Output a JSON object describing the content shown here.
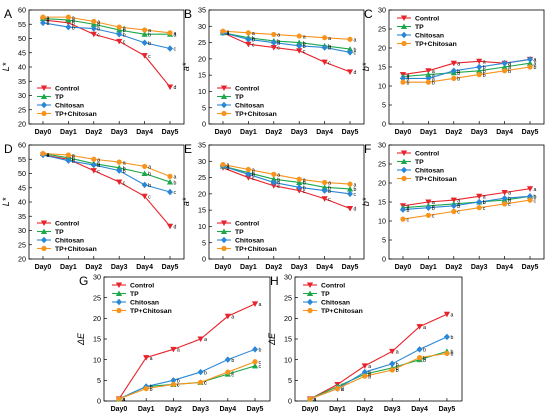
{
  "x_categories": [
    "Day0",
    "Day1",
    "Day2",
    "Day3",
    "Day4",
    "Day5"
  ],
  "colors": {
    "Control": "#e8232b",
    "TP": "#1ca84a",
    "Chitosan": "#2a87d6",
    "TP+Chitosan": "#f7941d"
  },
  "chart_data": [
    {
      "id": "A",
      "panel_letter": "A",
      "type": "line",
      "ylabel": "L*",
      "ylim": [
        20,
        60
      ],
      "yticks": [
        20,
        25,
        30,
        35,
        40,
        45,
        50,
        55,
        60
      ],
      "legend_position": "bottom-left",
      "grid": false,
      "categories": [
        "Day0",
        "Day1",
        "Day2",
        "Day3",
        "Day4",
        "Day5"
      ],
      "series": [
        {
          "name": "Control",
          "values": [
            56.5,
            55.5,
            51.5,
            49,
            44,
            33
          ],
          "labels": [
            "a",
            "b",
            "c",
            "c",
            "c",
            "d"
          ]
        },
        {
          "name": "TP",
          "values": [
            57,
            56.5,
            55,
            53,
            51.5,
            51.5
          ],
          "labels": [
            "a",
            "a",
            "b",
            "b",
            "b",
            "a"
          ]
        },
        {
          "name": "Chitosan",
          "values": [
            55.5,
            54,
            53.5,
            51.5,
            48.5,
            46.5
          ],
          "labels": [
            "b",
            "b",
            "b",
            "b",
            "b",
            "c"
          ]
        },
        {
          "name": "TP+Chitosan",
          "values": [
            57.5,
            57.5,
            56,
            54,
            53,
            52
          ],
          "labels": [
            "a",
            "a",
            "a",
            "a",
            "a",
            "a"
          ]
        }
      ]
    },
    {
      "id": "B",
      "panel_letter": "B",
      "type": "line",
      "ylabel": "a*",
      "ylim": [
        0,
        35
      ],
      "yticks": [
        0,
        5,
        10,
        15,
        20,
        25,
        30,
        35
      ],
      "legend_position": "bottom-left",
      "grid": false,
      "categories": [
        "Day0",
        "Day1",
        "Day2",
        "Day3",
        "Day4",
        "Day5"
      ],
      "series": [
        {
          "name": "Control",
          "values": [
            28,
            24.5,
            23.5,
            22.5,
            19,
            16
          ],
          "labels": [
            "a",
            "c",
            "c",
            "c",
            "c",
            "d"
          ]
        },
        {
          "name": "TP",
          "values": [
            28,
            26.5,
            25.5,
            25,
            24,
            23
          ],
          "labels": [
            "a",
            "b",
            "b",
            "b",
            "b",
            "b"
          ]
        },
        {
          "name": "Chitosan",
          "values": [
            28,
            26,
            25,
            24,
            23.5,
            22
          ],
          "labels": [
            "a",
            "b",
            "b",
            "b",
            "b",
            "c"
          ]
        },
        {
          "name": "TP+Chitosan",
          "values": [
            28.5,
            28,
            27.5,
            27,
            26.5,
            26
          ],
          "labels": [
            "a",
            "a",
            "a",
            "a",
            "a",
            "a"
          ]
        }
      ]
    },
    {
      "id": "C",
      "panel_letter": "C",
      "type": "line",
      "ylabel": "b*",
      "ylim": [
        0,
        30
      ],
      "yticks": [
        0,
        5,
        10,
        15,
        20,
        25,
        30
      ],
      "legend_position": "top-left",
      "grid": false,
      "categories": [
        "Day0",
        "Day1",
        "Day2",
        "Day3",
        "Day4",
        "Day5"
      ],
      "series": [
        {
          "name": "Control",
          "values": [
            13,
            14,
            16,
            16.5,
            16,
            17
          ],
          "labels": [
            "a",
            "a",
            "a",
            "a",
            "a",
            "a"
          ]
        },
        {
          "name": "TP",
          "values": [
            12.5,
            13,
            13.5,
            14,
            15,
            16
          ],
          "labels": [
            "a",
            "a",
            "b",
            "b",
            "a",
            "a"
          ]
        },
        {
          "name": "Chitosan",
          "values": [
            12,
            12,
            14,
            15,
            16,
            17
          ],
          "labels": [
            "a",
            "a",
            "b",
            "b",
            "a",
            "a"
          ]
        },
        {
          "name": "TP+Chitosan",
          "values": [
            11,
            11,
            12,
            13,
            14,
            15
          ],
          "labels": [
            "b",
            "b",
            "b",
            "b",
            "b",
            "b"
          ]
        }
      ]
    },
    {
      "id": "D",
      "panel_letter": "D",
      "type": "line",
      "ylabel": "L*",
      "ylim": [
        20,
        60
      ],
      "yticks": [
        20,
        25,
        30,
        35,
        40,
        45,
        50,
        55,
        60
      ],
      "legend_position": "bottom-left",
      "grid": false,
      "categories": [
        "Day0",
        "Day1",
        "Day2",
        "Day3",
        "Day4",
        "Day5"
      ],
      "series": [
        {
          "name": "Control",
          "values": [
            56.5,
            55,
            51,
            47,
            42,
            31.5
          ],
          "labels": [
            "a",
            "b",
            "c",
            "c",
            "c",
            "d"
          ]
        },
        {
          "name": "TP",
          "values": [
            57,
            55.5,
            53.5,
            52,
            50,
            47
          ],
          "labels": [
            "a",
            "b",
            "b",
            "b",
            "b",
            "b"
          ]
        },
        {
          "name": "Chitosan",
          "values": [
            56.5,
            54.5,
            53,
            51,
            46,
            43.5
          ],
          "labels": [
            "a",
            "b",
            "b",
            "b",
            "b",
            "c"
          ]
        },
        {
          "name": "TP+Chitosan",
          "values": [
            57,
            56.5,
            55,
            54,
            52.5,
            49
          ],
          "labels": [
            "a",
            "a",
            "a",
            "a",
            "a",
            "a"
          ]
        }
      ]
    },
    {
      "id": "E",
      "panel_letter": "E",
      "type": "line",
      "ylabel": "a*",
      "ylim": [
        0,
        35
      ],
      "yticks": [
        0,
        5,
        10,
        15,
        20,
        25,
        30,
        35
      ],
      "legend_position": "bottom-left",
      "grid": false,
      "categories": [
        "Day0",
        "Day1",
        "Day2",
        "Day3",
        "Day4",
        "Day5"
      ],
      "series": [
        {
          "name": "Control",
          "values": [
            28,
            25,
            22.5,
            21,
            18.5,
            15.5
          ],
          "labels": [
            "a",
            "c",
            "c",
            "c",
            "c",
            "d"
          ]
        },
        {
          "name": "TP",
          "values": [
            28.5,
            26.5,
            24.5,
            23.5,
            22,
            21.5
          ],
          "labels": [
            "a",
            "b",
            "b",
            "b",
            "b",
            "b"
          ]
        },
        {
          "name": "Chitosan",
          "values": [
            28.5,
            26,
            23.5,
            22,
            21,
            20
          ],
          "labels": [
            "a",
            "b",
            "b",
            "b",
            "b",
            "c"
          ]
        },
        {
          "name": "TP+Chitosan",
          "values": [
            29,
            27.5,
            26,
            24.5,
            23.5,
            23
          ],
          "labels": [
            "a",
            "a",
            "a",
            "a",
            "a",
            "a"
          ]
        }
      ]
    },
    {
      "id": "F",
      "panel_letter": "F",
      "type": "line",
      "ylabel": "b*",
      "ylim": [
        0,
        30
      ],
      "yticks": [
        0,
        5,
        10,
        15,
        20,
        25,
        30
      ],
      "legend_position": "top-left",
      "grid": false,
      "categories": [
        "Day0",
        "Day1",
        "Day2",
        "Day3",
        "Day4",
        "Day5"
      ],
      "series": [
        {
          "name": "Control",
          "values": [
            14,
            15,
            15.5,
            16.5,
            17.5,
            18.5
          ],
          "labels": [
            "a",
            "a",
            "a",
            "a",
            "a",
            "a"
          ]
        },
        {
          "name": "TP",
          "values": [
            13.5,
            14,
            14.5,
            15,
            15.5,
            16.5
          ],
          "labels": [
            "a",
            "a",
            "a",
            "b",
            "b",
            "b"
          ]
        },
        {
          "name": "Chitosan",
          "values": [
            13,
            13.5,
            14,
            15,
            16,
            16.5
          ],
          "labels": [
            "b",
            "b",
            "b",
            "b",
            "b",
            "b"
          ]
        },
        {
          "name": "TP+Chitosan",
          "values": [
            10.5,
            11.5,
            12.5,
            13.5,
            14.5,
            15.5
          ],
          "labels": [
            "c",
            "c",
            "c",
            "c",
            "c",
            "c"
          ]
        }
      ]
    },
    {
      "id": "G",
      "panel_letter": "G",
      "type": "line",
      "ylabel": "ΔE",
      "ylim": [
        0,
        30
      ],
      "yticks": [
        0,
        5,
        10,
        15,
        20,
        25,
        30
      ],
      "legend_position": "top-left",
      "grid": false,
      "categories": [
        "Day0",
        "Day1",
        "Day2",
        "Day3",
        "Day4",
        "Day5"
      ],
      "series": [
        {
          "name": "Control",
          "values": [
            0.5,
            10.5,
            12.5,
            15,
            20.5,
            23.5
          ],
          "labels": [
            "a",
            "a",
            "a",
            "a",
            "a",
            "a"
          ]
        },
        {
          "name": "TP",
          "values": [
            0.5,
            3.5,
            4,
            4.5,
            6.5,
            8.5
          ],
          "labels": [
            "a",
            "b",
            "c",
            "c",
            "c",
            "c"
          ]
        },
        {
          "name": "Chitosan",
          "values": [
            0.5,
            3.5,
            5,
            7,
            10,
            12.5
          ],
          "labels": [
            "a",
            "b",
            "b",
            "b",
            "b",
            "b"
          ]
        },
        {
          "name": "TP+Chitosan",
          "values": [
            0.5,
            3,
            4,
            4.5,
            7,
            9.5
          ],
          "labels": [
            "a",
            "b",
            "c",
            "c",
            "c",
            "c"
          ]
        }
      ]
    },
    {
      "id": "H",
      "panel_letter": "H",
      "type": "line",
      "ylabel": "ΔE",
      "ylim": [
        0,
        30
      ],
      "yticks": [
        0,
        5,
        10,
        15,
        20,
        25,
        30
      ],
      "legend_position": "top-left",
      "grid": false,
      "categories": [
        "Day0",
        "Day1",
        "Day2",
        "Day3",
        "Day4",
        "Day5"
      ],
      "series": [
        {
          "name": "Control",
          "values": [
            0.5,
            4,
            8.5,
            12,
            18,
            21
          ],
          "labels": [
            "a",
            "a",
            "a",
            "a",
            "a",
            "a"
          ]
        },
        {
          "name": "TP",
          "values": [
            0.5,
            3.5,
            6.5,
            8,
            10,
            12
          ],
          "labels": [
            "a",
            "a",
            "b",
            "b",
            "b",
            "b"
          ]
        },
        {
          "name": "Chitosan",
          "values": [
            0.5,
            3,
            7,
            9,
            12.5,
            15.5
          ],
          "labels": [
            "a",
            "a",
            "b",
            "b",
            "b",
            "b"
          ]
        },
        {
          "name": "TP+Chitosan",
          "values": [
            0.5,
            3,
            6,
            7.5,
            10.5,
            11.5
          ],
          "labels": [
            "a",
            "a",
            "b",
            "b",
            "b",
            "b"
          ]
        }
      ]
    }
  ]
}
